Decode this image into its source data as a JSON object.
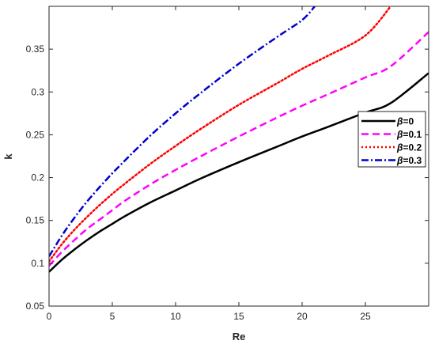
{
  "chart_data": {
    "type": "line",
    "xlabel": "Re",
    "ylabel": "k",
    "xlim": [
      0,
      30
    ],
    "ylim": [
      0.05,
      0.4
    ],
    "xticks": [
      0,
      5,
      10,
      15,
      20,
      25
    ],
    "yticks": [
      0.05,
      0.1,
      0.15,
      0.2,
      0.25,
      0.3,
      0.35
    ],
    "grid": false,
    "legend_position": "right",
    "series": [
      {
        "name": "β=0",
        "legend_prefix": "β",
        "legend_suffix": "=0",
        "color": "#000000",
        "dash": "solid",
        "x": [
          0,
          1,
          2,
          3,
          4,
          5,
          6,
          8,
          10,
          12,
          15,
          18,
          20,
          22,
          25,
          27,
          30
        ],
        "y": [
          0.09,
          0.104,
          0.116,
          0.127,
          0.137,
          0.146,
          0.155,
          0.171,
          0.185,
          0.199,
          0.218,
          0.236,
          0.248,
          0.259,
          0.276,
          0.287,
          0.322
        ]
      },
      {
        "name": "β=0.1",
        "legend_prefix": "β",
        "legend_suffix": "=0.1",
        "color": "#ff00ff",
        "dash": "dash",
        "x": [
          0,
          1,
          2,
          3,
          4,
          5,
          6,
          8,
          10,
          12,
          15,
          18,
          20,
          22,
          25,
          27,
          30
        ],
        "y": [
          0.097,
          0.113,
          0.127,
          0.14,
          0.151,
          0.162,
          0.173,
          0.192,
          0.209,
          0.225,
          0.248,
          0.27,
          0.284,
          0.297,
          0.317,
          0.33,
          0.37
        ]
      },
      {
        "name": "β=0.2",
        "legend_prefix": "β",
        "legend_suffix": "=0.2",
        "color": "#ff0000",
        "dash": "dot",
        "x": [
          0,
          1,
          2,
          3,
          4,
          5,
          6,
          8,
          10,
          12,
          15,
          18,
          20,
          22,
          25,
          27
        ],
        "y": [
          0.102,
          0.122,
          0.139,
          0.154,
          0.168,
          0.181,
          0.193,
          0.216,
          0.237,
          0.257,
          0.285,
          0.31,
          0.327,
          0.342,
          0.366,
          0.4
        ]
      },
      {
        "name": "β=0.3",
        "legend_prefix": "β",
        "legend_suffix": "=0.3",
        "color": "#0000cc",
        "dash": "dashdot",
        "x": [
          0,
          1,
          2,
          3,
          4,
          5,
          6,
          8,
          10,
          12,
          15,
          18,
          20,
          21
        ],
        "y": [
          0.108,
          0.132,
          0.153,
          0.172,
          0.189,
          0.205,
          0.22,
          0.249,
          0.275,
          0.299,
          0.333,
          0.364,
          0.384,
          0.4
        ]
      }
    ]
  }
}
